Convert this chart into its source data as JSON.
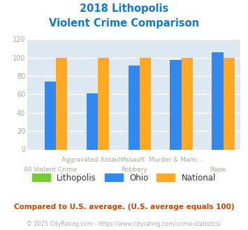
{
  "title_line1": "2018 Lithopolis",
  "title_line2": "Violent Crime Comparison",
  "series": {
    "Lithopolis": [
      0,
      0,
      0,
      0,
      0
    ],
    "Ohio": [
      74,
      61,
      91,
      97,
      106
    ],
    "National": [
      100,
      100,
      100,
      100,
      100
    ]
  },
  "colors": {
    "Lithopolis": "#77cc33",
    "Ohio": "#3388ee",
    "National": "#ffaa22"
  },
  "ylim": [
    0,
    120
  ],
  "yticks": [
    0,
    20,
    40,
    60,
    80,
    100,
    120
  ],
  "plot_bg": "#dde8f0",
  "title_color": "#1177dd",
  "axis_label_color": "#aaa89a",
  "grid_color": "#ffffff",
  "top_labels": [
    "",
    "Aggravated Assault",
    "Assault",
    "Murder & Mans...",
    ""
  ],
  "bot_labels": [
    "All Violent Crime",
    "",
    "Robbery",
    "",
    "Rape"
  ],
  "footnote1": "Compared to U.S. average. (U.S. average equals 100)",
  "footnote2": "© 2025 CityRating.com - https://www.cityrating.com/crime-statistics/",
  "footnote1_color": "#cc4400",
  "footnote2_color": "#aaaaaa"
}
